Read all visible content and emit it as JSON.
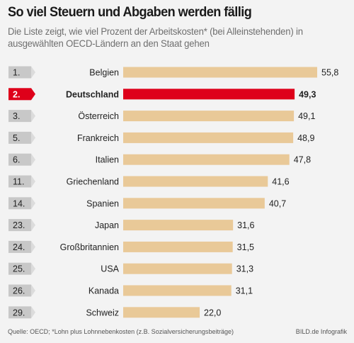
{
  "title": "So viel Steuern und Abgaben werden fällig",
  "subtitle": "Die Liste zeigt, wie viel Prozent der Arbeitskosten* (bei Alleinstehenden) in ausgewählten OECD-Ländern an den Staat gehen",
  "footer": {
    "source": "Quelle: OECD; *Lohn plus Lohnnebenkosten (z.B. Sozialversicherungsbeiträge)",
    "credit": "BILD.de Infografik"
  },
  "colors": {
    "bar": "#e9c998",
    "highlight_bar": "#de001a",
    "rank_box": "#c8c8c8",
    "rank_tip": "#dcdcdc",
    "highlight_rank": "#de001a",
    "background": "#f3f3f3"
  },
  "chart_data": {
    "type": "bar",
    "orientation": "horizontal",
    "categories": [
      "Belgien",
      "Deutschland",
      "Österreich",
      "Frankreich",
      "Italien",
      "Griechenland",
      "Spanien",
      "Japan",
      "Großbritannien",
      "USA",
      "Kanada",
      "Schweiz"
    ],
    "ranks": [
      "1.",
      "2.",
      "3.",
      "5.",
      "6.",
      "11.",
      "14.",
      "23.",
      "24.",
      "25.",
      "26.",
      "29."
    ],
    "values": [
      55.8,
      49.3,
      49.1,
      48.9,
      47.8,
      41.6,
      40.7,
      31.6,
      31.5,
      31.3,
      31.1,
      22.0
    ],
    "labels": [
      "55,8",
      "49,3",
      "49,1",
      "48,9",
      "47,8",
      "41,6",
      "40,7",
      "31,6",
      "31,5",
      "31,3",
      "31,1",
      "22,0"
    ],
    "highlight": "Deutschland",
    "grid": false
  }
}
